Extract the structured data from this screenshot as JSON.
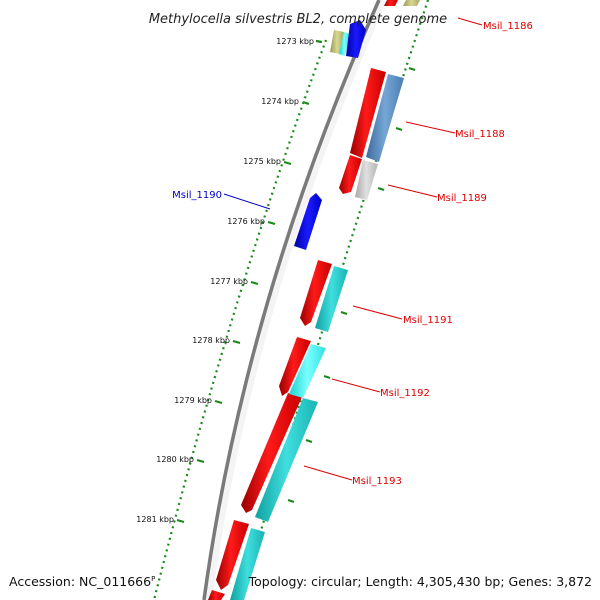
{
  "map": {
    "title": "Methylocella silvestris BL2, complete genome",
    "kbp_labels": [
      "1273 kbp",
      "1274 kbp",
      "1275 kbp",
      "1276 kbp",
      "1277 kbp",
      "1278 kbp",
      "1279 kbp",
      "1280 kbp",
      "1281 kbp"
    ],
    "gene_labels": [
      {
        "name": "Msil_1186",
        "color": "#dd0000"
      },
      {
        "name": "Msil_1188",
        "color": "#dd0000"
      },
      {
        "name": "Msil_1189",
        "color": "#dd0000"
      },
      {
        "name": "Msil_1190",
        "color": "#0000cc"
      },
      {
        "name": "Msil_1191",
        "color": "#dd0000"
      },
      {
        "name": "Msil_1192",
        "color": "#dd0000"
      },
      {
        "name": "Msil_1193",
        "color": "#dd0000"
      }
    ],
    "colors": {
      "forward_gene": "#ff0000",
      "reverse_gene": "#0000ff",
      "cds_cyan": "#20c8c8",
      "cds_steel": "#5a8cc0",
      "cds_gray": "#c0c0c0",
      "cds_olive": "#b8b870",
      "backbone": "#888888",
      "tick_green": "#1a8a1a"
    }
  },
  "footer": {
    "accession_label": "Accession:",
    "accession_value": "NC_011666",
    "accession_mark": "P",
    "topology_text": "Topology: circular; Length: 4,305,430 bp; Genes: 3,872"
  }
}
